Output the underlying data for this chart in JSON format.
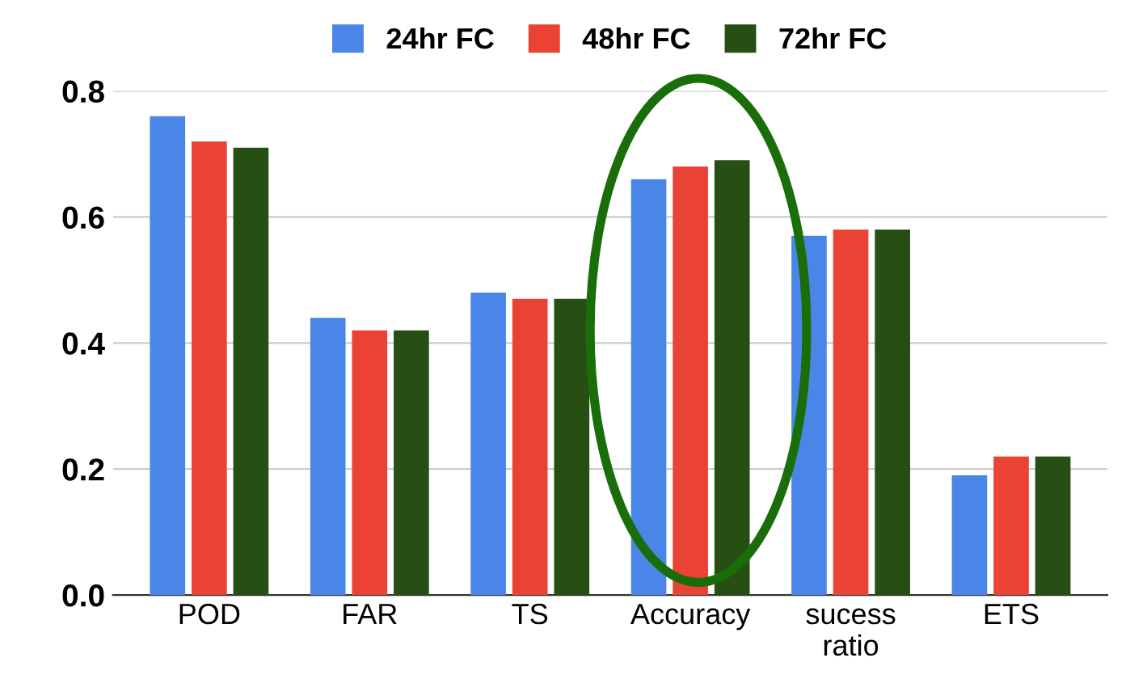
{
  "chart_data": {
    "type": "bar",
    "categories": [
      "POD",
      "FAR",
      "TS",
      "Accuracy",
      "sucess\nratio",
      "ETS"
    ],
    "series": [
      {
        "name": "24hr FC",
        "color": "#4a86e8",
        "values": [
          0.76,
          0.44,
          0.48,
          0.66,
          0.57,
          0.19
        ]
      },
      {
        "name": "48hr FC",
        "color": "#ea4335",
        "values": [
          0.72,
          0.42,
          0.47,
          0.68,
          0.58,
          0.22
        ]
      },
      {
        "name": "72hr FC",
        "color": "#274e13",
        "values": [
          0.71,
          0.42,
          0.47,
          0.69,
          0.58,
          0.22
        ]
      }
    ],
    "ylim": [
      0,
      0.8
    ],
    "yticks": [
      {
        "value": 0,
        "label": "0.0"
      },
      {
        "value": 0.2,
        "label": "0.2"
      },
      {
        "value": 0.4,
        "label": "0.4"
      },
      {
        "value": 0.6,
        "label": "0.6"
      },
      {
        "value": 0.8,
        "label": "0.8"
      }
    ],
    "grid": "y",
    "legend": "top"
  }
}
